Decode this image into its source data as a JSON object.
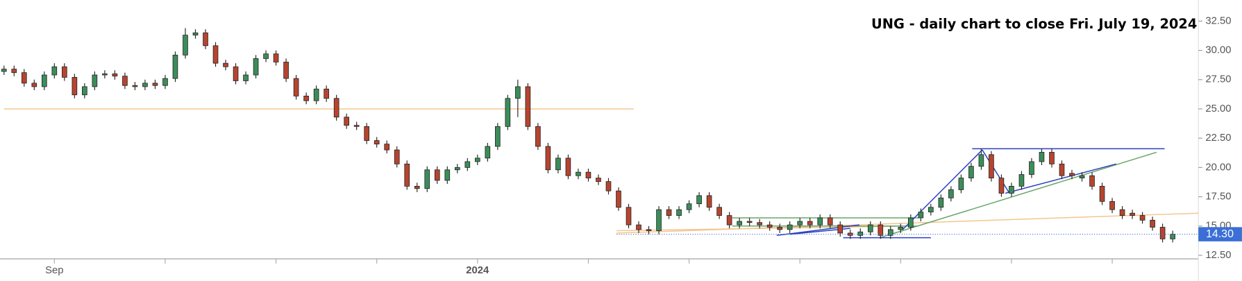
{
  "chart_data": {
    "type": "candlestick",
    "title": "UNG - daily chart to close Fri. July 19, 2024",
    "up_color": "#3b8d5a",
    "down_color": "#b7442f",
    "ylim": [
      12.2,
      34.3
    ],
    "yticks": [
      {
        "value": 12.5,
        "label": "12.50"
      },
      {
        "value": 15,
        "label": "15.00"
      },
      {
        "value": 17.5,
        "label": "17.50"
      },
      {
        "value": 20,
        "label": "20.00"
      },
      {
        "value": 22.5,
        "label": "22.50"
      },
      {
        "value": 25,
        "label": "25.00"
      },
      {
        "value": 27.5,
        "label": "27.50"
      },
      {
        "value": 30,
        "label": "30.00"
      },
      {
        "value": 32.5,
        "label": "32.50"
      }
    ],
    "xticks": [
      {
        "value": 5,
        "label": "Sep"
      },
      {
        "value": 16,
        "label": null
      },
      {
        "value": 27,
        "label": null
      },
      {
        "value": 37,
        "label": null
      },
      {
        "value": 47,
        "label": "2024"
      },
      {
        "value": 58,
        "label": null
      },
      {
        "value": 68,
        "label": null
      },
      {
        "value": 79,
        "label": null
      },
      {
        "value": 89,
        "label": null
      },
      {
        "value": 100,
        "label": null
      },
      {
        "value": 110,
        "label": null
      }
    ],
    "last_price": {
      "value": 14.3,
      "label": "14.30",
      "color": "#3b6fd6"
    },
    "open": [
      28.2,
      28.4,
      28.1,
      27.2,
      26.9,
      27.9,
      28.6,
      27.7,
      26.2,
      26.9,
      27.9,
      28.0,
      27.8,
      27.0,
      26.9,
      27.2,
      27.0,
      27.6,
      29.6,
      31.3,
      31.5,
      30.4,
      28.9,
      28.6,
      27.4,
      27.9,
      29.3,
      29.7,
      29.0,
      27.6,
      26.1,
      25.7,
      26.7,
      25.9,
      24.3,
      23.6,
      23.5,
      22.3,
      22.0,
      21.5,
      20.3,
      18.4,
      18.2,
      19.8,
      18.9,
      19.8,
      20.0,
      20.5,
      20.8,
      21.8,
      23.5,
      25.9,
      26.9,
      23.5,
      21.8,
      19.8,
      20.8,
      19.3,
      19.6,
      19.1,
      18.8,
      18.0,
      16.6,
      15.1,
      14.7,
      14.6,
      16.4,
      15.9,
      16.4,
      16.9,
      17.6,
      16.6,
      15.9,
      15.1,
      15.4,
      15.3,
      15.1,
      14.9,
      14.7,
      15.1,
      15.4,
      15.1,
      15.7,
      15.1,
      14.4,
      14.2,
      14.5,
      15.1,
      14.2,
      14.7,
      14.9,
      15.7,
      16.2,
      16.6,
      17.4,
      18.1,
      19.1,
      20.1,
      21.1,
      19.1,
      17.8,
      18.4,
      19.4,
      20.5,
      21.3,
      20.3,
      19.5,
      19.1,
      19.3,
      18.4,
      17.1,
      16.4,
      16.1,
      15.9,
      15.5,
      14.9,
      13.9
    ],
    "high": [
      28.7,
      28.7,
      28.4,
      27.5,
      28.2,
      28.9,
      28.9,
      28.0,
      27.2,
      28.2,
      28.3,
      28.3,
      28.1,
      27.3,
      27.5,
      27.5,
      27.9,
      29.9,
      31.9,
      31.8,
      31.8,
      30.7,
      29.2,
      28.9,
      28.2,
      29.6,
      30.0,
      30.0,
      29.3,
      27.9,
      26.4,
      27.0,
      27.0,
      26.2,
      24.6,
      23.9,
      23.8,
      22.6,
      22.3,
      21.8,
      20.6,
      18.7,
      20.1,
      20.1,
      20.1,
      20.3,
      20.8,
      21.1,
      22.1,
      23.8,
      26.2,
      27.5,
      27.2,
      23.8,
      22.1,
      21.1,
      21.1,
      19.9,
      19.9,
      19.4,
      19.1,
      18.3,
      16.9,
      15.4,
      15.0,
      16.7,
      16.7,
      16.7,
      17.2,
      17.9,
      17.9,
      16.9,
      16.2,
      15.7,
      15.7,
      15.6,
      15.4,
      15.2,
      15.4,
      15.7,
      15.7,
      16.0,
      16.0,
      15.4,
      14.7,
      14.8,
      15.4,
      15.4,
      15.0,
      15.2,
      16.0,
      16.5,
      16.9,
      17.7,
      18.4,
      19.4,
      20.4,
      21.6,
      21.4,
      19.4,
      18.7,
      19.7,
      20.8,
      21.6,
      21.6,
      20.6,
      19.8,
      19.6,
      19.6,
      18.7,
      17.4,
      16.7,
      16.4,
      16.2,
      15.8,
      15.2,
      14.6
    ],
    "low": [
      27.9,
      27.8,
      26.9,
      26.6,
      26.6,
      27.6,
      27.4,
      25.9,
      25.9,
      26.6,
      27.6,
      27.5,
      26.7,
      26.6,
      26.6,
      26.7,
      26.7,
      27.3,
      29.3,
      31.0,
      30.1,
      28.6,
      28.3,
      27.1,
      27.1,
      27.6,
      29.0,
      28.7,
      27.3,
      25.8,
      25.4,
      25.4,
      25.6,
      24.0,
      23.3,
      23.2,
      22.0,
      21.7,
      21.2,
      20.0,
      18.1,
      17.9,
      17.9,
      18.6,
      18.6,
      19.5,
      19.7,
      20.2,
      20.5,
      21.5,
      23.2,
      24.3,
      23.2,
      21.5,
      19.5,
      19.5,
      19.0,
      19.0,
      18.8,
      18.5,
      17.7,
      16.3,
      14.8,
      14.4,
      14.3,
      14.3,
      15.6,
      15.6,
      16.1,
      16.6,
      16.3,
      15.6,
      14.8,
      14.8,
      15.0,
      14.8,
      14.6,
      14.4,
      14.4,
      14.8,
      14.8,
      14.8,
      14.8,
      14.1,
      13.9,
      13.9,
      14.2,
      13.9,
      13.9,
      14.4,
      14.6,
      15.4,
      15.9,
      16.3,
      17.1,
      17.8,
      18.8,
      19.8,
      18.8,
      17.5,
      17.5,
      18.1,
      19.1,
      20.2,
      20.0,
      19.0,
      19.0,
      18.8,
      18.1,
      16.8,
      16.1,
      15.6,
      15.6,
      15.2,
      14.6,
      13.6,
      13.6
    ],
    "close": [
      28.4,
      28.1,
      27.2,
      26.9,
      27.9,
      28.6,
      27.7,
      26.2,
      26.9,
      27.9,
      28.0,
      27.8,
      27.0,
      26.9,
      27.2,
      27.0,
      27.6,
      29.6,
      31.3,
      31.5,
      30.4,
      28.9,
      28.6,
      27.4,
      27.9,
      29.3,
      29.7,
      29.0,
      27.6,
      26.1,
      25.7,
      26.7,
      25.9,
      24.3,
      23.6,
      23.5,
      22.3,
      22.0,
      21.5,
      20.3,
      18.4,
      18.2,
      19.8,
      18.9,
      19.8,
      20.0,
      20.5,
      20.8,
      21.8,
      23.5,
      25.9,
      26.9,
      23.5,
      21.8,
      19.8,
      20.8,
      19.3,
      19.6,
      19.1,
      18.8,
      18.0,
      16.6,
      15.1,
      14.7,
      14.6,
      16.4,
      15.9,
      16.4,
      16.9,
      17.6,
      16.6,
      15.9,
      15.1,
      15.4,
      15.3,
      15.1,
      14.9,
      14.7,
      15.1,
      15.4,
      15.1,
      15.7,
      15.1,
      14.4,
      14.2,
      14.5,
      15.1,
      14.2,
      14.7,
      14.9,
      15.7,
      16.2,
      16.6,
      17.4,
      18.1,
      19.1,
      20.1,
      21.1,
      19.1,
      17.8,
      18.4,
      19.4,
      20.5,
      21.3,
      20.3,
      19.3,
      19.3,
      19.3,
      18.4,
      17.1,
      16.4,
      15.9,
      15.9,
      15.5,
      14.9,
      13.9,
      14.3
    ],
    "trendlines": [
      {
        "color": "#f5c58e",
        "x": [
          0,
          62.5
        ],
        "y": [
          25.0,
          25.0
        ]
      },
      {
        "color": "#f5c58e",
        "x": [
          60.8,
          122
        ],
        "y": [
          14.4,
          16.2
        ]
      },
      {
        "color": "#f5c58e",
        "x": [
          60.8,
          90
        ],
        "y": [
          14.6,
          15.0
        ]
      },
      {
        "color": "#6aa56a",
        "x": [
          72.3,
          90.8
        ],
        "y": [
          15.7,
          15.7
        ]
      },
      {
        "color": "#6aa56a",
        "x": [
          72.3,
          90.8
        ],
        "y": [
          15.0,
          15.0
        ]
      },
      {
        "color": "#6aa56a",
        "x": [
          86.9,
          114.4
        ],
        "y": [
          14.0,
          21.3
        ]
      },
      {
        "color": "#2b3fc0",
        "x": [
          96.1,
          115.2
        ],
        "y": [
          21.6,
          21.6
        ]
      },
      {
        "color": "#2b3fc0",
        "x": [
          97.1,
          99.8
        ],
        "y": [
          21.5,
          17.8
        ]
      },
      {
        "color": "#2b3fc0",
        "x": [
          99.4,
          110.4
        ],
        "y": [
          17.8,
          20.3
        ]
      },
      {
        "color": "#2b3fc0",
        "x": [
          89.2,
          97.1
        ],
        "y": [
          14.7,
          21.5
        ]
      },
      {
        "color": "#2b3fc0",
        "x": [
          76.7,
          84.9
        ],
        "y": [
          14.2,
          15.1
        ]
      },
      {
        "color": "#2b3fc0",
        "x": [
          78,
          84
        ],
        "y": [
          14.3,
          14.8
        ]
      },
      {
        "color": "#2b3fc0",
        "x": [
          83.3,
          92.0
        ],
        "y": [
          14.0,
          14.0
        ]
      }
    ]
  }
}
